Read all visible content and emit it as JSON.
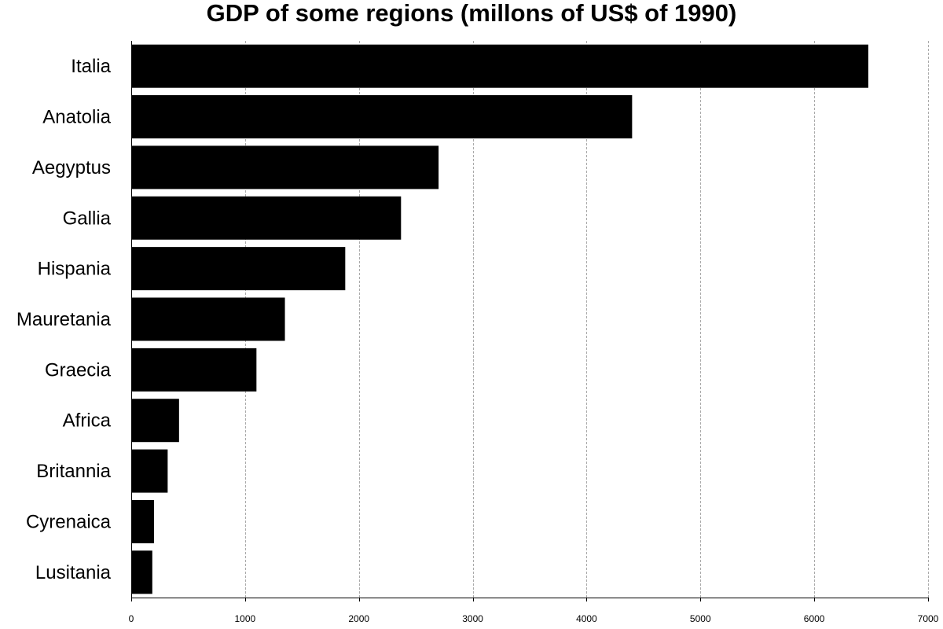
{
  "chart_data": {
    "type": "bar",
    "orientation": "horizontal",
    "title": "GDP of some regions (millons of US$ of 1990)",
    "xlabel": "",
    "ylabel": "",
    "categories": [
      "Italia",
      "Anatolia",
      "Aegyptus",
      "Gallia",
      "Hispania",
      "Mauretania",
      "Graecia",
      "Africa",
      "Britannia",
      "Cyrenaica",
      "Lusitania"
    ],
    "values": [
      6475,
      4400,
      2700,
      2370,
      1880,
      1350,
      1100,
      420,
      320,
      200,
      185
    ],
    "xlim": [
      0,
      7000
    ],
    "xticks": [
      0,
      1000,
      2000,
      3000,
      4000,
      5000,
      6000,
      7000
    ],
    "grid": "vertical dashed",
    "legend": "none",
    "bar_color": "#000000",
    "grid_color": "#aaaaaa"
  }
}
